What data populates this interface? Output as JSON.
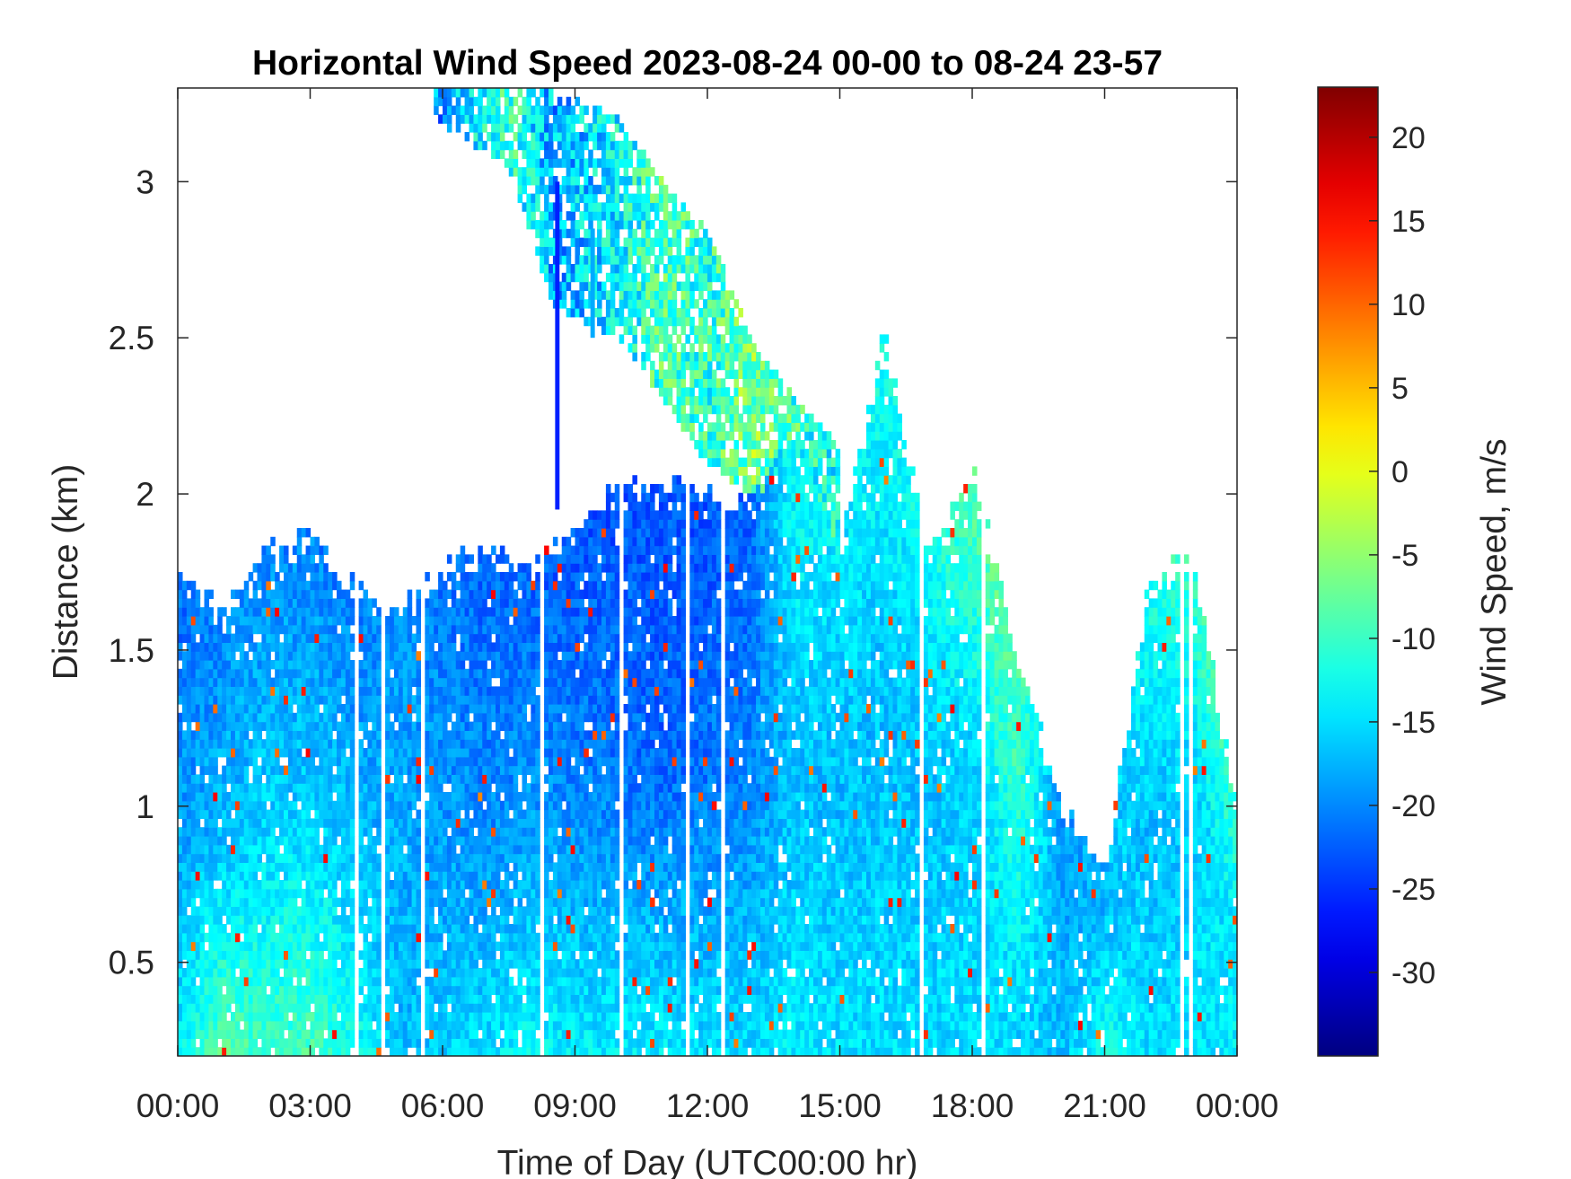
{
  "chart_data": {
    "type": "heatmap",
    "title": "Horizontal Wind Speed 2023-08-24 00-00 to 08-24 23-57",
    "xlabel": "Time of Day (UTC00:00 hr)",
    "ylabel": "Distance (km)",
    "x_tick_labels": [
      "00:00",
      "03:00",
      "06:00",
      "09:00",
      "12:00",
      "15:00",
      "18:00",
      "21:00",
      "00:00"
    ],
    "x_tick_hours": [
      0,
      3,
      6,
      9,
      12,
      15,
      18,
      21,
      24
    ],
    "xlim_hours": [
      0,
      24
    ],
    "y_ticks": [
      0.5,
      1,
      1.5,
      2,
      2.5,
      3
    ],
    "y_tick_labels": [
      "0.5",
      "1",
      "1.5",
      "2",
      "2.5",
      "3"
    ],
    "ylim_km": [
      0.2,
      3.3
    ],
    "colorbar": {
      "label": "Wind Speed, m/s",
      "colormap": "jet",
      "range": [
        -35,
        23
      ],
      "ticks": [
        20,
        15,
        10,
        5,
        0,
        -5,
        -10,
        -15,
        -20,
        -25,
        -30
      ],
      "tick_labels": [
        "20",
        "15",
        "10",
        "5",
        "0",
        "-5",
        "-10",
        "-15",
        "-20",
        "-25",
        "-30"
      ]
    },
    "profiles": [
      {
        "hour": 0.0,
        "top_km": 1.75,
        "low_ms": -14,
        "mid_ms": -19,
        "high_ms": -22
      },
      {
        "hour": 1.0,
        "top_km": 1.6,
        "low_ms": -8,
        "mid_ms": -17,
        "high_ms": -20
      },
      {
        "hour": 2.0,
        "top_km": 1.8,
        "low_ms": -10,
        "mid_ms": -16,
        "high_ms": -20
      },
      {
        "hour": 3.0,
        "top_km": 1.85,
        "low_ms": -9,
        "mid_ms": -16,
        "high_ms": -20
      },
      {
        "hour": 4.0,
        "top_km": 1.7,
        "low_ms": -12,
        "mid_ms": -17,
        "high_ms": -21
      },
      {
        "hour": 5.0,
        "top_km": 1.6,
        "low_ms": -17,
        "mid_ms": -18,
        "high_ms": -19
      },
      {
        "hour": 6.0,
        "top_km": 1.75,
        "low_ms": -16,
        "mid_ms": -19,
        "high_ms": -21
      },
      {
        "hour": 7.0,
        "top_km": 1.8,
        "low_ms": -15,
        "mid_ms": -20,
        "high_ms": -22
      },
      {
        "hour": 8.0,
        "top_km": 1.75,
        "low_ms": -13,
        "mid_ms": -19,
        "high_ms": -22
      },
      {
        "hour": 9.0,
        "top_km": 1.9,
        "low_ms": -14,
        "mid_ms": -20,
        "high_ms": -23
      },
      {
        "hour": 10.0,
        "top_km": 2.0,
        "low_ms": -14,
        "mid_ms": -21,
        "high_ms": -23
      },
      {
        "hour": 11.0,
        "top_km": 2.05,
        "low_ms": -14,
        "mid_ms": -22,
        "high_ms": -23
      },
      {
        "hour": 12.0,
        "top_km": 2.0,
        "low_ms": -15,
        "mid_ms": -21,
        "high_ms": -23
      },
      {
        "hour": 13.0,
        "top_km": 1.95,
        "low_ms": -15,
        "mid_ms": -20,
        "high_ms": -22
      },
      {
        "hour": 14.0,
        "top_km": 2.2,
        "low_ms": -14,
        "mid_ms": -17,
        "high_ms": -12
      },
      {
        "hour": 15.0,
        "top_km": 1.8,
        "low_ms": -15,
        "mid_ms": -17,
        "high_ms": -15
      },
      {
        "hour": 16.0,
        "top_km": 2.5,
        "low_ms": -15,
        "mid_ms": -17,
        "high_ms": -12
      },
      {
        "hour": 17.0,
        "top_km": 1.8,
        "low_ms": -15,
        "mid_ms": -17,
        "high_ms": -13
      },
      {
        "hour": 18.0,
        "top_km": 2.05,
        "low_ms": -15,
        "mid_ms": -16,
        "high_ms": -8
      },
      {
        "hour": 19.0,
        "top_km": 1.5,
        "low_ms": -16,
        "mid_ms": -12,
        "high_ms": -8
      },
      {
        "hour": 20.0,
        "top_km": 1.0,
        "low_ms": -17,
        "mid_ms": -18,
        "high_ms": -19
      },
      {
        "hour": 21.0,
        "top_km": 0.8,
        "low_ms": -12,
        "mid_ms": -16,
        "high_ms": -18
      },
      {
        "hour": 22.0,
        "top_km": 1.7,
        "low_ms": -15,
        "mid_ms": -17,
        "high_ms": -12
      },
      {
        "hour": 23.0,
        "top_km": 1.8,
        "low_ms": -15,
        "mid_ms": -16,
        "high_ms": -10
      },
      {
        "hour": 24.0,
        "top_km": 1.0,
        "low_ms": -14,
        "mid_ms": -14,
        "high_ms": -10
      }
    ],
    "upper_layer": [
      {
        "hour": 5.8,
        "bottom_km": 3.2,
        "top_km": 3.3,
        "speed_ms": -20
      },
      {
        "hour": 7.5,
        "bottom_km": 3.05,
        "top_km": 3.3,
        "speed_ms": -10
      },
      {
        "hour": 8.5,
        "bottom_km": 2.6,
        "top_km": 3.3,
        "speed_ms": -18
      },
      {
        "hour": 10.0,
        "bottom_km": 2.5,
        "top_km": 3.2,
        "speed_ms": -14
      },
      {
        "hour": 11.0,
        "bottom_km": 2.3,
        "top_km": 3.0,
        "speed_ms": -9
      },
      {
        "hour": 12.0,
        "bottom_km": 2.1,
        "top_km": 2.85,
        "speed_ms": -11
      },
      {
        "hour": 13.0,
        "bottom_km": 2.0,
        "top_km": 2.5,
        "speed_ms": -6
      },
      {
        "hour": 14.0,
        "bottom_km": 1.9,
        "top_km": 2.3,
        "speed_ms": -10
      },
      {
        "hour": 15.0,
        "bottom_km": 1.8,
        "top_km": 2.15,
        "speed_ms": -13
      }
    ],
    "isolated_spikes": [
      {
        "hour": 8.55,
        "bottom_km": 1.95,
        "top_km": 3.0,
        "speed_ms": -26
      },
      {
        "hour": 9.35,
        "bottom_km": 2.5,
        "top_km": 2.85,
        "speed_ms": -18
      }
    ]
  }
}
